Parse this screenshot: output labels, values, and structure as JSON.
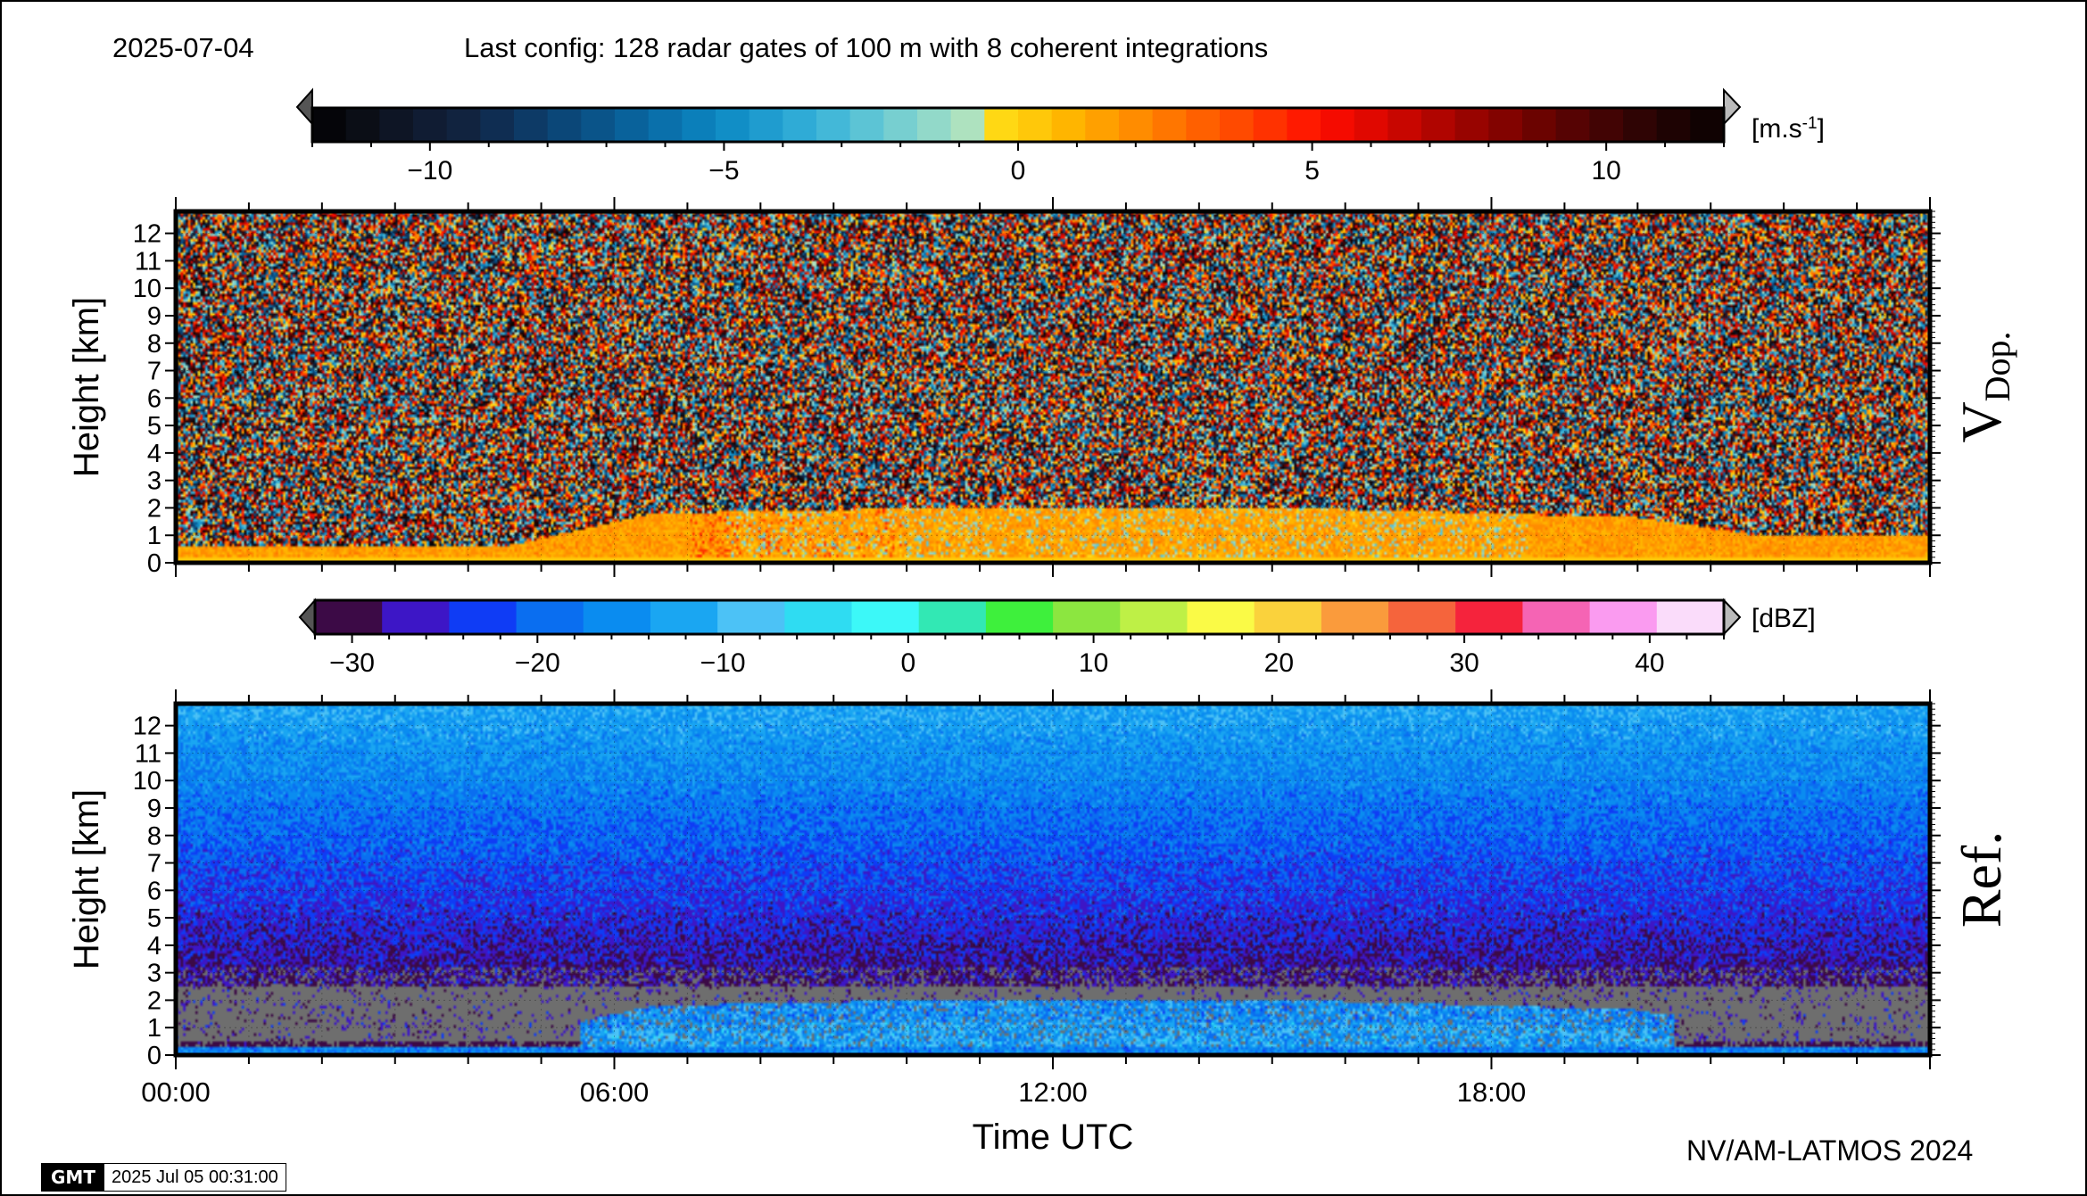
{
  "header": {
    "date": "2025-07-04",
    "config": "Last config: 128 radar gates of 100 m with 8 coherent integrations"
  },
  "footer": {
    "credit": "NV/AM-LATMOS 2024",
    "gmt_logo": "GMT",
    "gmt_timestamp": "2025 Jul 05 00:31:00"
  },
  "chart_data": [
    {
      "type": "heatmap",
      "panel": "Doppler velocity",
      "side_label_main": "V",
      "side_label_sub": "Dop.",
      "ylabel": "Height [km]",
      "ylim": [
        0,
        12.8
      ],
      "yticks": [
        "0",
        "1",
        "2",
        "3",
        "4",
        "5",
        "6",
        "7",
        "8",
        "9",
        "10",
        "11",
        "12"
      ],
      "xlim_hours": [
        0,
        24
      ],
      "colorbar": {
        "unit_base": "[m.s",
        "unit_exp": "-1",
        "unit_close": "]",
        "range": [
          -12,
          12
        ],
        "ticks": [
          "−10",
          "−5",
          "0",
          "5",
          "10"
        ],
        "tick_values": [
          -10,
          -5,
          0,
          5,
          10
        ],
        "colors": [
          "#050509",
          "#0b0e16",
          "#0e1525",
          "#101c33",
          "#11233f",
          "#0f2d52",
          "#0d3a66",
          "#0b4778",
          "#0a5489",
          "#09629b",
          "#0a70ab",
          "#0b7fba",
          "#118ec6",
          "#1f9ccf",
          "#2fabd6",
          "#43b8d8",
          "#5cc4d5",
          "#77cfd0",
          "#92d9c9",
          "#aee2bf",
          "#ffd814",
          "#ffc80a",
          "#ffb500",
          "#ffa000",
          "#ff8c00",
          "#ff7600",
          "#ff6000",
          "#ff4a00",
          "#ff3200",
          "#ff1a00",
          "#f50b00",
          "#e00800",
          "#c80600",
          "#b00500",
          "#980400",
          "#820300",
          "#6b0300",
          "#560303",
          "#420404",
          "#2f0404",
          "#1e0303",
          "#100202"
        ]
      },
      "profile_note": "broadband noise aloft; coherent echoes (about -2 to +4 m/s) in a boundary layer ~0.5 km at night growing to ~2 km 07:00-21:00 UTC"
    },
    {
      "type": "heatmap",
      "panel": "Reflectivity",
      "side_label_main": "Ref.",
      "xlabel": "Time UTC",
      "ylabel": "Height [km]",
      "ylim": [
        0,
        12.8
      ],
      "yticks": [
        "0",
        "1",
        "2",
        "3",
        "4",
        "5",
        "6",
        "7",
        "8",
        "9",
        "10",
        "11",
        "12"
      ],
      "xlim_hours": [
        0,
        24
      ],
      "xticks": [
        "00:00",
        "06:00",
        "12:00",
        "18:00"
      ],
      "xtick_values": [
        0,
        6,
        12,
        18
      ],
      "colorbar": {
        "unit": "[dBZ]",
        "range": [
          -32,
          44
        ],
        "ticks": [
          "−30",
          "−20",
          "−10",
          "0",
          "10",
          "20",
          "30",
          "40"
        ],
        "tick_values": [
          -30,
          -20,
          -10,
          0,
          10,
          20,
          30,
          40
        ],
        "colors": [
          "#3c0a46",
          "#3d16c6",
          "#0f3cf5",
          "#0a6ef0",
          "#0a8cf0",
          "#1aa6f2",
          "#4cc2f6",
          "#2fdcf2",
          "#3cf8f8",
          "#32e8b4",
          "#3ef03c",
          "#8ce640",
          "#bef046",
          "#fafa46",
          "#fad23c",
          "#fa9b3c",
          "#f5643c",
          "#f5233c",
          "#f564b4",
          "#fa9bf0",
          "#fadcfa"
        ]
      },
      "no_data_color": "#6e6e6e",
      "profile_note": "reflectivity ~ -12 dBZ near 12 km decreasing to ~ -30 dBZ near 3 km; no-signal (grey) layer 0.4-2.5 km; boundary layer echoes -20 to -8 dBZ 06:00-20:00 UTC"
    }
  ]
}
